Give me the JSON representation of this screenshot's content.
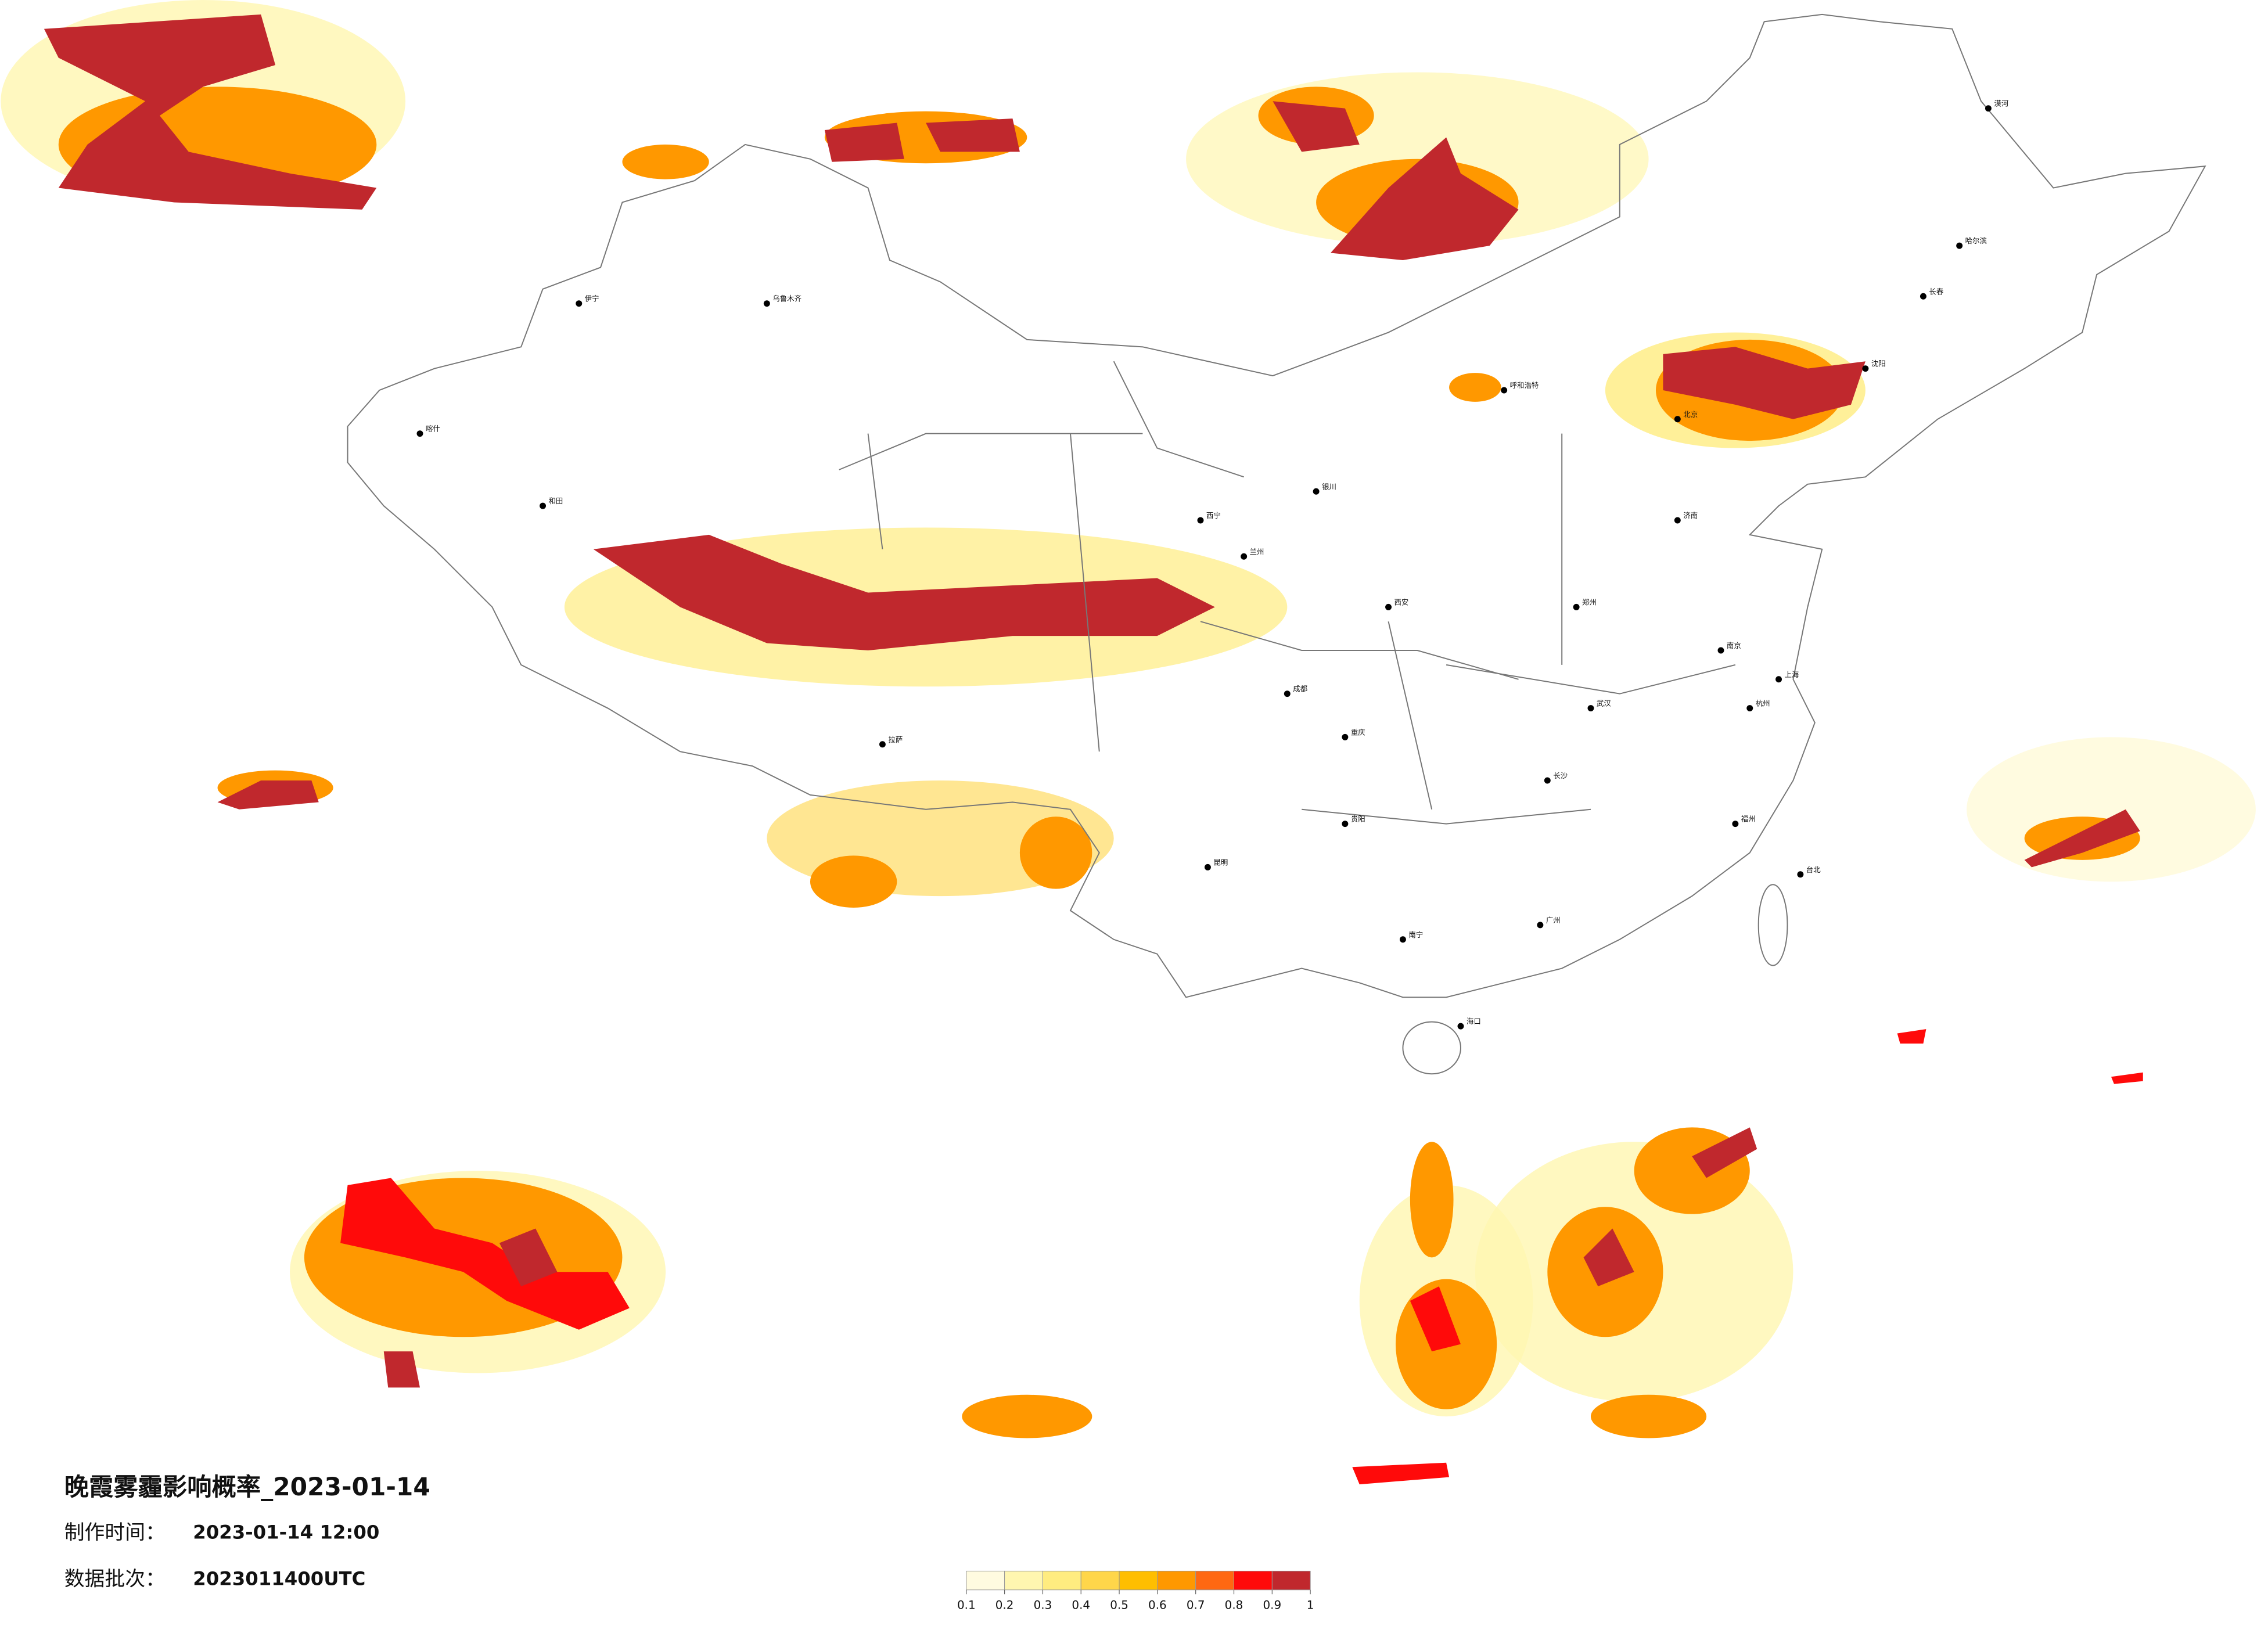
{
  "header": {
    "title": "晚霞雾霾影响概率_2023-01-14"
  },
  "info": {
    "production_label": "制作时间：",
    "production_time": "2023-01-14 12:00",
    "batch_label": "数据批次：",
    "batch": "2023011400UTC"
  },
  "legend": {
    "colors": [
      "#fffbe0",
      "#fff6b0",
      "#ffec80",
      "#ffd64a",
      "#ffbe00",
      "#ff9800",
      "#ff6812",
      "#ff0a0a",
      "#c0282d"
    ],
    "ticks": [
      0.1,
      0.2,
      0.3,
      0.4,
      0.5,
      0.6,
      0.7,
      0.8,
      0.9,
      1
    ]
  },
  "cities": [
    "乌鲁木齐",
    "拉萨",
    "西宁",
    "兰州",
    "成都",
    "重庆",
    "昆明",
    "贵阳",
    "南宁",
    "广州",
    "北京",
    "上海",
    "武汉",
    "长沙",
    "西安",
    "郑州",
    "济南",
    "南京",
    "杭州",
    "福州",
    "哈尔滨",
    "长春",
    "沈阳",
    "呼和浩特",
    "银川",
    "海口",
    "台北",
    "喀什",
    "和田",
    "伊宁",
    "漠河"
  ]
}
